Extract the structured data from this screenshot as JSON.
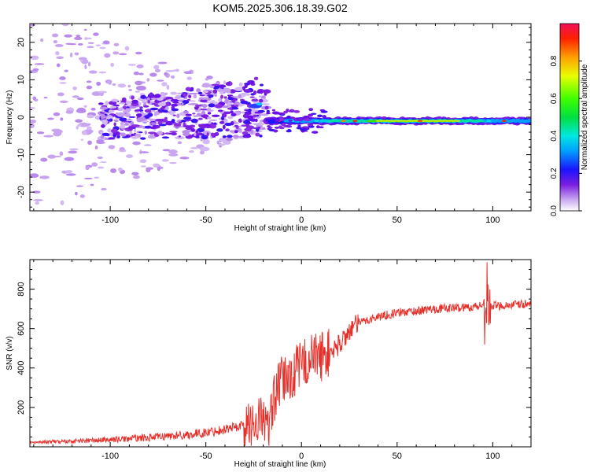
{
  "title": "KOM5.2025.306.18.39.G02",
  "chart_data": [
    {
      "type": "heatmap",
      "name": "spectrogram",
      "xlabel": "Height of straight line (km)",
      "ylabel": "Frequency (Hz)",
      "xlim": [
        -142,
        120
      ],
      "ylim": [
        -25,
        25
      ],
      "xticks": [
        -100,
        -50,
        0,
        50,
        100
      ],
      "yticks": [
        -20,
        -10,
        0,
        10,
        20
      ],
      "colorbar": {
        "label": "Normalized spectral amplitude",
        "ticks": [
          0.0,
          0.2,
          0.4,
          0.6,
          0.8
        ],
        "range": [
          0,
          1
        ]
      },
      "features": {
        "scatter_region_km": [
          -142,
          -18
        ],
        "steady_line_km": [
          -18,
          120
        ],
        "steady_line_frequency_hz": -1
      }
    },
    {
      "type": "line",
      "name": "snr",
      "xlabel": "Height of straight line (km)",
      "ylabel": "SNR (v/v)",
      "xlim": [
        -142,
        120
      ],
      "ylim": [
        0,
        950
      ],
      "xticks": [
        -100,
        -50,
        0,
        50,
        100
      ],
      "yticks": [
        200,
        400,
        600,
        800
      ],
      "color": "#e8302a",
      "profile": {
        "x": [
          -142,
          -120,
          -100,
          -80,
          -60,
          -50,
          -40,
          -30,
          -25,
          -20,
          -17,
          -15,
          -10,
          -5,
          0,
          5,
          10,
          15,
          20,
          25,
          30,
          40,
          50,
          60,
          70,
          80,
          90,
          95,
          97,
          98,
          100,
          110,
          120
        ],
        "y": [
          20,
          24,
          30,
          40,
          52,
          62,
          80,
          100,
          120,
          160,
          60,
          230,
          340,
          360,
          420,
          450,
          460,
          480,
          520,
          590,
          630,
          660,
          680,
          690,
          700,
          705,
          710,
          720,
          730,
          720,
          715,
          720,
          725
        ]
      }
    }
  ]
}
